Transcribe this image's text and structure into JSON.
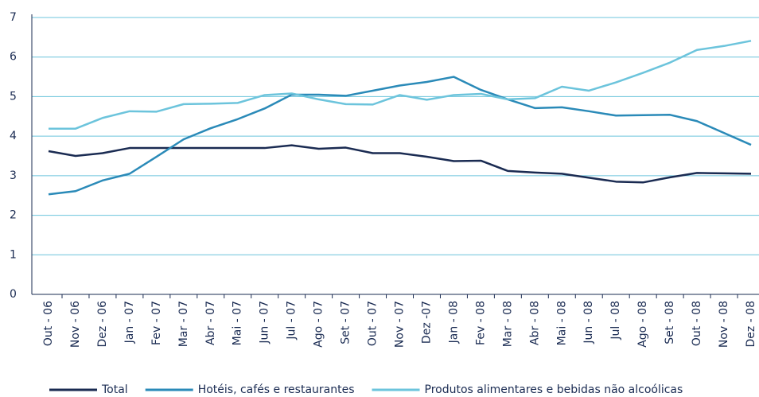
{
  "chart_data": {
    "type": "line",
    "categories": [
      "Out - 06",
      "Nov - 06",
      "Dez - 06",
      "Jan - 07",
      "Fev - 07",
      "Mar - 07",
      "Abr - 07",
      "Mai - 07",
      "Jun - 07",
      "Jul - 07",
      "Ago - 07",
      "Set - 07",
      "Out - 07",
      "Nov - 07",
      "Dez -07",
      "Jan - 08",
      "Fev - 08",
      "Mar - 08",
      "Abr - 08",
      "Mai - 08",
      "Jun - 08",
      "Jul - 08",
      "Ago - 08",
      "Set - 08",
      "Out - 08",
      "Nov - 08",
      "Dez - 08"
    ],
    "series": [
      {
        "name": "Total",
        "color": "#1a2b52",
        "values": [
          3.62,
          3.5,
          3.57,
          3.7,
          3.7,
          3.7,
          3.7,
          3.7,
          3.7,
          3.77,
          3.68,
          3.71,
          3.57,
          3.57,
          3.48,
          3.37,
          3.38,
          3.12,
          3.08,
          3.05,
          2.95,
          2.85,
          2.83,
          2.96,
          3.07,
          3.06,
          3.05
        ]
      },
      {
        "name": "Hotéis, cafés e restaurantes",
        "color": "#2a8ab8",
        "values": [
          2.53,
          2.61,
          2.88,
          3.05,
          3.48,
          3.92,
          4.2,
          4.43,
          4.7,
          5.05,
          5.05,
          5.02,
          5.15,
          5.28,
          5.37,
          5.5,
          5.17,
          4.93,
          4.71,
          4.73,
          4.63,
          4.52,
          4.53,
          4.54,
          4.38,
          4.08,
          3.78
        ]
      },
      {
        "name": "Produtos alimentares e bebidas não alcoólicas",
        "color": "#6cc4dc",
        "values": [
          4.19,
          4.19,
          4.46,
          4.63,
          4.62,
          4.81,
          4.82,
          4.84,
          5.04,
          5.08,
          4.93,
          4.81,
          4.8,
          5.04,
          4.92,
          5.04,
          5.07,
          4.93,
          4.96,
          5.25,
          5.15,
          5.36,
          5.6,
          5.86,
          6.18,
          6.28,
          6.41
        ]
      }
    ],
    "ylim": [
      0,
      7
    ],
    "yticks": [
      0,
      1,
      2,
      3,
      4,
      5,
      6,
      7
    ],
    "grid": true,
    "legend": "bottom"
  }
}
